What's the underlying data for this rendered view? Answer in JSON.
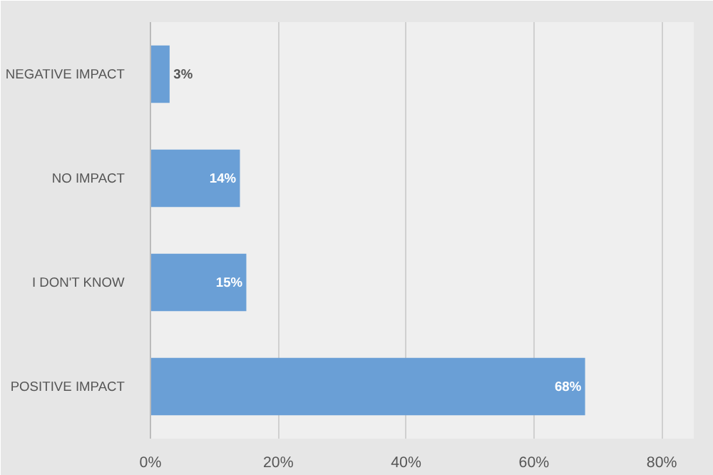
{
  "chart_data": {
    "type": "bar",
    "orientation": "horizontal",
    "categories": [
      "NEGATIVE IMPACT",
      "NO IMPACT",
      "I DON'T KNOW",
      "POSITIVE IMPACT"
    ],
    "values": [
      3,
      14,
      15,
      68
    ],
    "value_labels": [
      "3%",
      "14%",
      "15%",
      "68%"
    ],
    "color": "#6a9fd6",
    "xlim": [
      0,
      85
    ],
    "xticks": [
      {
        "value": 0,
        "label": "0%"
      },
      {
        "value": 20,
        "label": "20%"
      },
      {
        "value": 40,
        "label": "40%"
      },
      {
        "value": 60,
        "label": "60%"
      },
      {
        "value": 80,
        "label": "80%"
      }
    ],
    "grid": "x"
  }
}
